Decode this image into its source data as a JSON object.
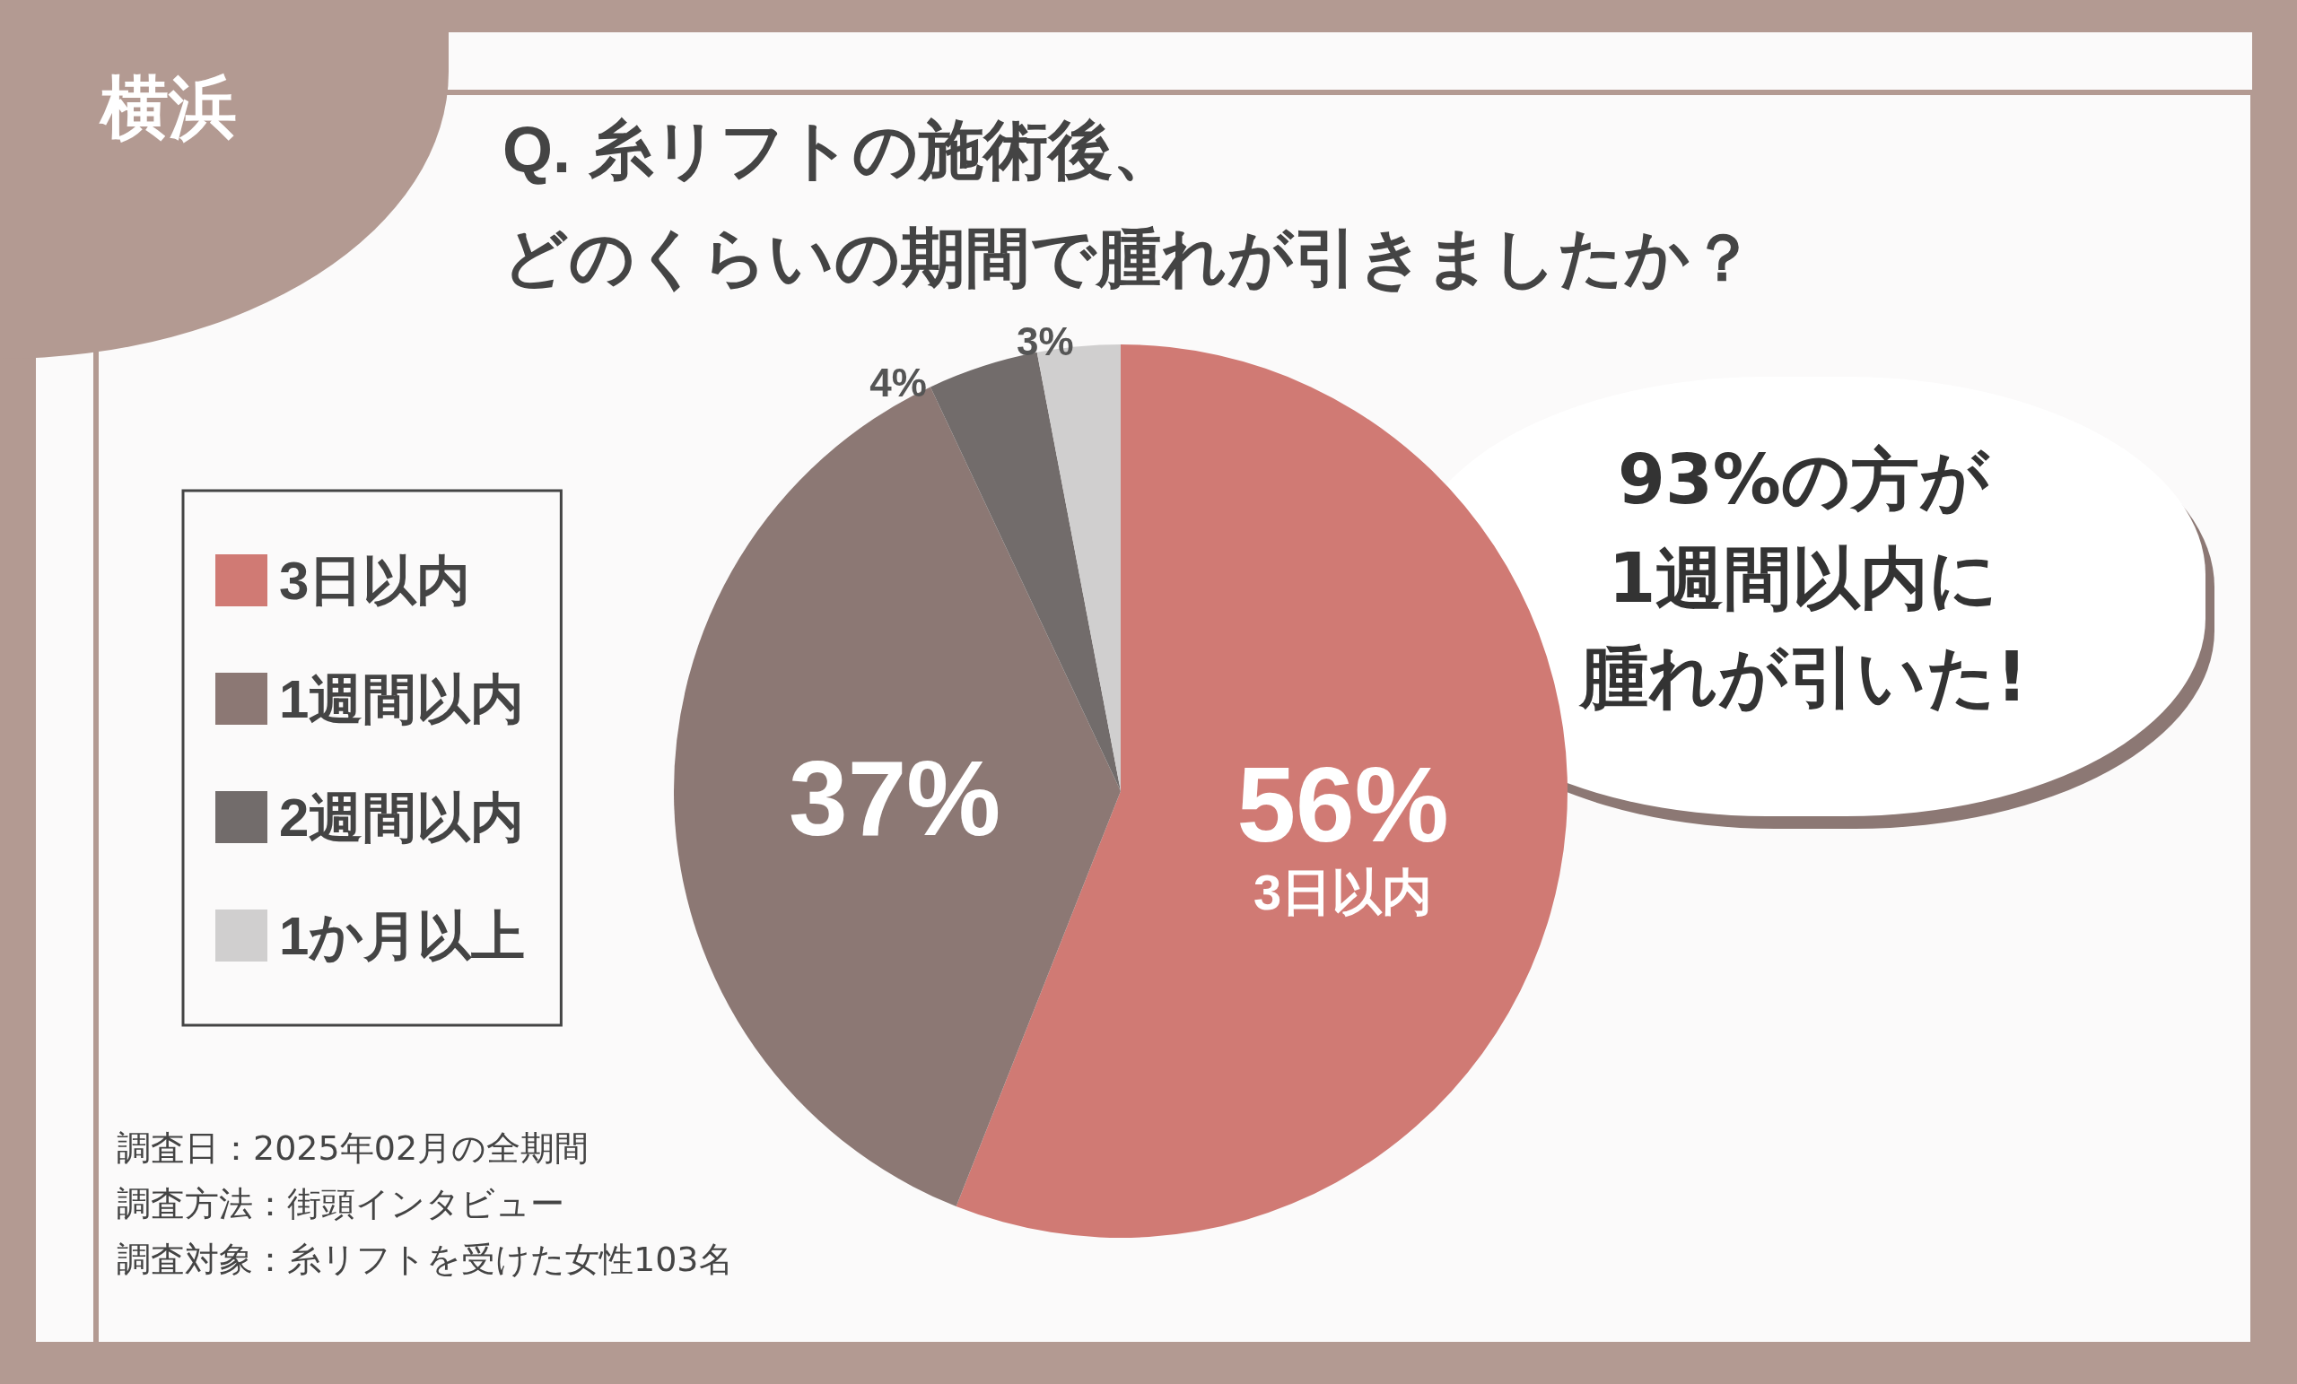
{
  "chart_data": {
    "type": "pie",
    "title": "Q. 糸リフトの施術後、",
    "subtitle": "どのくらいの期間で腫れが引きましたか？",
    "categories": [
      "3日以内",
      "1週間以内",
      "2週間以内",
      "1か月以上"
    ],
    "values": [
      56,
      37,
      4,
      3
    ],
    "colors": [
      "#d07a74",
      "#8c7874",
      "#726c6b",
      "#d0cfcf"
    ],
    "value_labels": [
      "56%\n3日以内",
      "37%",
      "4%",
      "3%"
    ],
    "legend": "left",
    "annotations": [
      "横浜",
      "93%の方が",
      "1週間以内に",
      "腫れが引いた!",
      "調査日：2025年02月の全期間",
      "調査方法：街頭インタビュー",
      "調査対象：糸リフトを受けた女性103名"
    ]
  }
}
